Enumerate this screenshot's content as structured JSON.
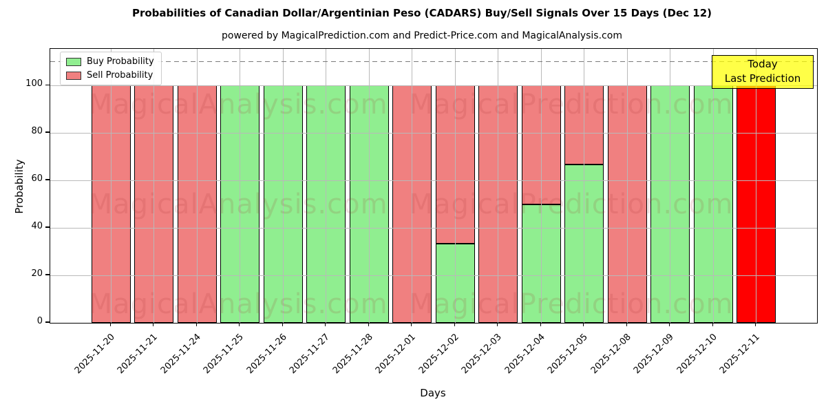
{
  "subtitle": "powered by MagicalPrediction.com and Predict-Price.com and MagicalAnalysis.com",
  "watermarks": {
    "left_text": "MagicalAnalysis.com",
    "right_text": "MagicalPrediction.com"
  },
  "legend": {
    "position": "upper left",
    "items": [
      {
        "label": "Buy Probability",
        "color": "#90ee90"
      },
      {
        "label": "Sell Probability",
        "color": "#f08080"
      }
    ]
  },
  "annotation": {
    "line1": "Today",
    "line2": "Last Prediction",
    "bg_color": "#ffff00",
    "border_color": "#000000"
  },
  "chart_data": {
    "type": "bar",
    "stacked": true,
    "title": "Probabilities of Canadian Dollar/Argentinian Peso (CADARS) Buy/Sell Signals Over 15 Days (Dec 12)",
    "xlabel": "Days",
    "ylabel": "Probability",
    "ylim": [
      0,
      115.4
    ],
    "yticks": [
      0,
      20,
      40,
      60,
      80,
      100
    ],
    "dashed_line_y": 110,
    "grid": true,
    "categories": [
      "2025-11-20",
      "2025-11-21",
      "2025-11-24",
      "2025-11-25",
      "2025-11-26",
      "2025-11-27",
      "2025-11-28",
      "2025-12-01",
      "2025-12-02",
      "2025-12-03",
      "2025-12-04",
      "2025-12-05",
      "2025-12-08",
      "2025-12-09",
      "2025-12-10",
      "2025-12-11"
    ],
    "series": [
      {
        "name": "Buy Probability",
        "color": "#90ee90",
        "values": [
          0,
          0,
          0,
          100,
          100,
          100,
          100,
          0,
          33.3,
          0,
          50,
          66.7,
          0,
          100,
          100,
          0
        ]
      },
      {
        "name": "Sell Probability",
        "color": "#f08080",
        "values": [
          100,
          100,
          100,
          0,
          0,
          0,
          0,
          100,
          66.7,
          100,
          50,
          33.3,
          100,
          0,
          0,
          100
        ]
      }
    ],
    "highlight_last_bar": {
      "index": 15,
      "series": "Sell Probability",
      "color": "#ff0000"
    },
    "bar_edge_color": "#000000",
    "grid_color": "#b9b9b9",
    "dashed_line_color": "#7a7a7a"
  }
}
